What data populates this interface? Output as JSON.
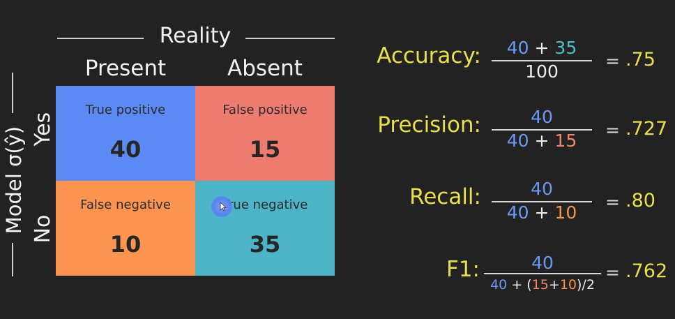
{
  "matrix": {
    "reality_title": "Reality",
    "columns": [
      "Present",
      "Absent"
    ],
    "model_title": "Model σ(ŷ)",
    "rows": [
      "Yes",
      "No"
    ],
    "cells": [
      {
        "label": "True positive",
        "value": "40",
        "color": "#5b8af5"
      },
      {
        "label": "False positive",
        "value": "15",
        "color": "#ee7b70"
      },
      {
        "label": "False negative",
        "value": "10",
        "color": "#fb9451"
      },
      {
        "label": "True negative",
        "value": "35",
        "color": "#4db4c7"
      }
    ]
  },
  "metrics": {
    "accuracy": {
      "name": "Accuracy:",
      "num_a": "40",
      "plus": "+",
      "num_b": "35",
      "den": "100",
      "eq": "=",
      "result": ".75"
    },
    "precision": {
      "name": "Precision:",
      "num": "40",
      "den_a": "40",
      "plus": "+",
      "den_b": "15",
      "eq": "=",
      "result": ".727"
    },
    "recall": {
      "name": "Recall:",
      "num": "40",
      "den_a": "40",
      "plus": "+",
      "den_b": "10",
      "eq": "=",
      "result": ".80"
    },
    "f1": {
      "name": "F1:",
      "num": "40",
      "den_a": "40",
      "plus1": " + (",
      "den_b": "15",
      "plus2": "+",
      "den_c": "10",
      "tail": ")/2",
      "eq": "=",
      "result": ".762"
    }
  },
  "colors": {
    "true_positive": "#5b8af5",
    "false_positive": "#ee7b70",
    "false_negative": "#fb9451",
    "true_negative": "#4db4c7",
    "metric_label": "#e9df4c",
    "background": "#222222"
  }
}
